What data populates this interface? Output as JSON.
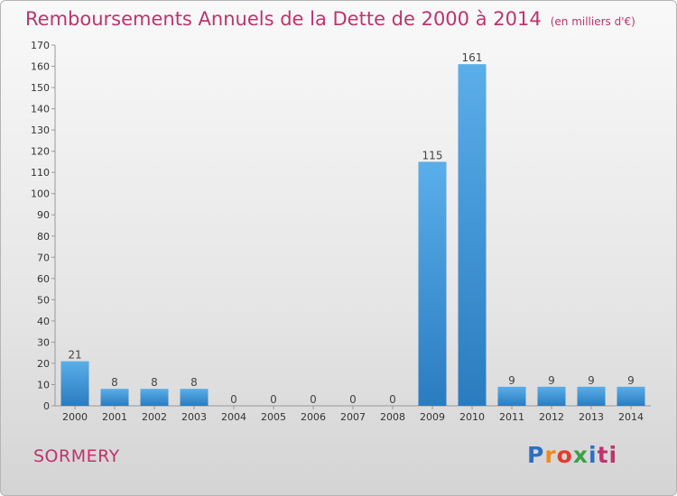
{
  "title": "Remboursements Annuels de la Dette de 2000 à 2014",
  "subtitle": "(en milliers d'€)",
  "commune": "SORMERY",
  "logo": {
    "text": "Proxiti",
    "parts": [
      "P",
      "r",
      "o",
      "x",
      "i",
      "ti"
    ]
  },
  "colors": {
    "title": "#c0336d",
    "bar_top": "#5aaee9",
    "bar_bottom": "#2a7cc0"
  },
  "chart_data": {
    "type": "bar",
    "categories": [
      "2000",
      "2001",
      "2002",
      "2003",
      "2004",
      "2005",
      "2006",
      "2007",
      "2008",
      "2009",
      "2010",
      "2011",
      "2012",
      "2013",
      "2014"
    ],
    "values": [
      21,
      8,
      8,
      8,
      0,
      0,
      0,
      0,
      0,
      115,
      161,
      9,
      9,
      9,
      9
    ],
    "ylim": [
      0,
      170
    ],
    "yticks": [
      0,
      10,
      20,
      30,
      40,
      50,
      60,
      70,
      80,
      90,
      100,
      110,
      120,
      130,
      140,
      150,
      160,
      170
    ],
    "grid": false
  }
}
